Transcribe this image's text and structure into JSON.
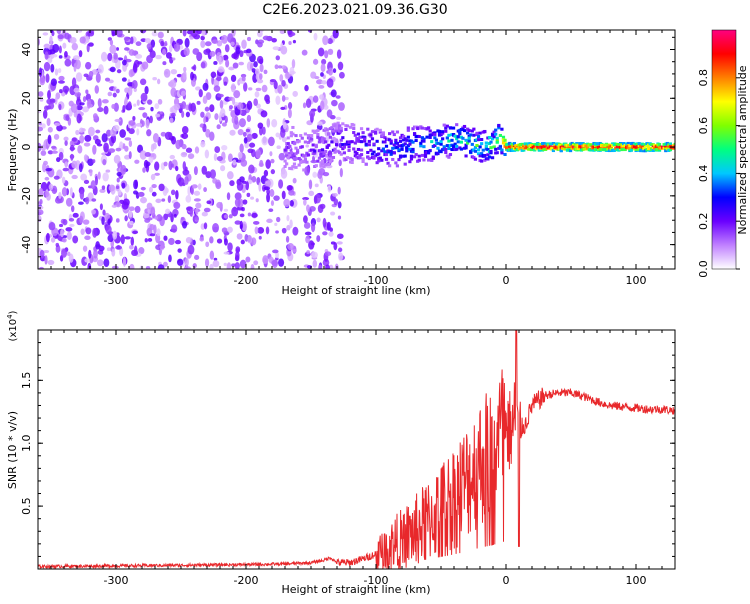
{
  "title": "C2E6.2023.021.09.36.G30",
  "chart_data": [
    {
      "type": "heatmap",
      "title": "C2E6.2023.021.09.36.G30",
      "xlabel": "Height of straight line (km)",
      "ylabel": "Frequency (Hz)",
      "xlim": [
        -360,
        130
      ],
      "ylim": [
        -50,
        48
      ],
      "xticks": [
        -300,
        -200,
        -100,
        0,
        100
      ],
      "xtick_labels": [
        "-300",
        "-200",
        "-100",
        "0",
        "100"
      ],
      "yticks": [
        40,
        20,
        0,
        -20,
        -40
      ],
      "ytick_labels": [
        "40",
        "20",
        "0",
        "-20",
        "-40"
      ],
      "colorbar": {
        "label": "Normalized spectral amplitude",
        "range": [
          0,
          1
        ],
        "ticks": [
          0.0,
          0.2,
          0.4,
          0.6,
          0.8
        ],
        "tick_labels": [
          "0.0",
          "0.2",
          "0.4",
          "0.6",
          "0.8"
        ],
        "colors": [
          "#ffffff",
          "#c080ff",
          "#6a00ff",
          "#0000ff",
          "#00c8ff",
          "#00ff80",
          "#80ff00",
          "#ffff00",
          "#ff8000",
          "#ff0000",
          "#ff0080"
        ]
      },
      "noise_region_km": [
        -360,
        -125
      ],
      "noise_amplitude": 0.2,
      "signal_trace": {
        "x": [
          -170,
          -150,
          -130,
          -110,
          -90,
          -70,
          -50,
          -40,
          -30,
          -20,
          -10,
          -5,
          0,
          20,
          60,
          100,
          130
        ],
        "freq": [
          0,
          -2,
          2,
          1,
          -1,
          1,
          2,
          3,
          2,
          0,
          1,
          4,
          0,
          0,
          0,
          0,
          0
        ],
        "amplitude": [
          0.2,
          0.25,
          0.3,
          0.35,
          0.4,
          0.45,
          0.5,
          0.55,
          0.6,
          0.6,
          0.7,
          0.8,
          0.9,
          0.95,
          0.95,
          0.95,
          0.95
        ]
      }
    },
    {
      "type": "line",
      "xlabel": "Height of straight line (km)",
      "ylabel": "SNR (10 * v/v)",
      "y_multiplier": "(x10",
      "y_multiplier_exp": "4",
      "y_multiplier_close": ")",
      "xlim": [
        -360,
        130
      ],
      "ylim": [
        0,
        1.9
      ],
      "xticks": [
        -300,
        -200,
        -100,
        0,
        100
      ],
      "xtick_labels": [
        "-300",
        "-200",
        "-100",
        "0",
        "100"
      ],
      "yticks": [
        0.5,
        1.0,
        1.5
      ],
      "ytick_labels": [
        "0.5",
        "1.0",
        "1.5"
      ],
      "series": [
        {
          "name": "SNR",
          "color": "#e8282b",
          "x": [
            -360,
            -300,
            -250,
            -200,
            -170,
            -150,
            -140,
            -135,
            -130,
            -120,
            -110,
            -100,
            -90,
            -80,
            -70,
            -60,
            -50,
            -40,
            -30,
            -20,
            -10,
            -5,
            0,
            5,
            8,
            10,
            15,
            20,
            30,
            40,
            50,
            60,
            70,
            80,
            90,
            100,
            110,
            120,
            130
          ],
          "y": [
            0.02,
            0.025,
            0.03,
            0.035,
            0.04,
            0.05,
            0.07,
            0.09,
            0.05,
            0.05,
            0.08,
            0.12,
            0.18,
            0.24,
            0.3,
            0.38,
            0.48,
            0.58,
            0.7,
            0.85,
            0.95,
            1.05,
            1.1,
            1.1,
            1.3,
            1.1,
            1.15,
            1.3,
            1.38,
            1.4,
            1.4,
            1.37,
            1.33,
            1.3,
            1.29,
            1.28,
            1.27,
            1.27,
            1.26
          ]
        }
      ]
    }
  ]
}
